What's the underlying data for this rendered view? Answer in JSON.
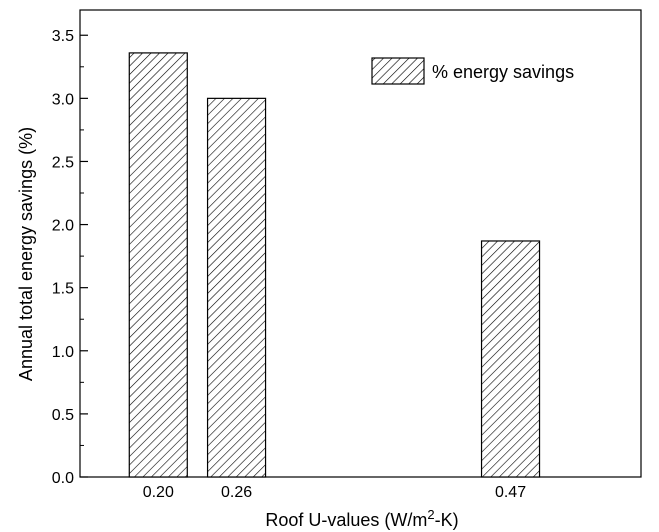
{
  "chart_data": {
    "type": "bar",
    "categories": [
      "0.20",
      "0.26",
      "0.47"
    ],
    "x": [
      0.2,
      0.26,
      0.47
    ],
    "series": [
      {
        "name": "% energy savings",
        "values": [
          3.36,
          3.0,
          1.87
        ]
      }
    ],
    "xlabel_main": "Roof U-values (W/m",
    "xlabel_sup": "2",
    "xlabel_tail": "-K)",
    "ylabel": "Annual total energy savings (%)",
    "ylim": [
      0.0,
      3.7
    ],
    "yticks": [
      "0.0",
      "0.5",
      "1.0",
      "1.5",
      "2.0",
      "2.5",
      "3.0",
      "3.5"
    ],
    "ytick_values": [
      0.0,
      0.5,
      1.0,
      1.5,
      2.0,
      2.5,
      3.0,
      3.5
    ],
    "xlim": [
      0.14,
      0.57
    ],
    "bar_fill": "#ffffff",
    "bar_hatch_color": "#000000",
    "legend_position": "top-right",
    "grid": false
  }
}
